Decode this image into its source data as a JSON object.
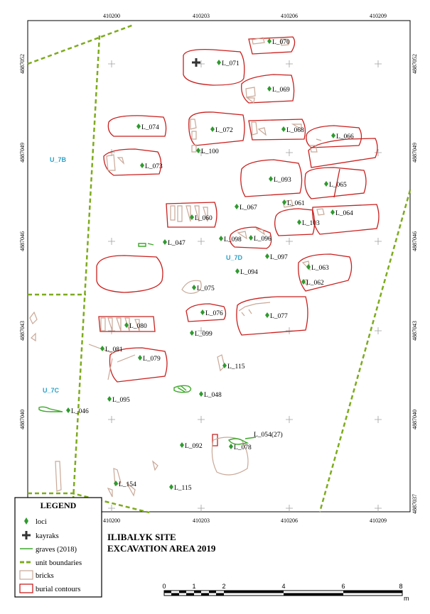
{
  "map": {
    "x_ticks": [
      "410200",
      "410203",
      "410206",
      "410209"
    ],
    "y_ticks": [
      "4887052",
      "4887049",
      "4887046",
      "4887043",
      "4887040",
      "4887037"
    ],
    "units": [
      "U_7B",
      "U_7C",
      "U_7D"
    ],
    "loci": [
      "L_070",
      "L_071",
      "L_069",
      "L_074",
      "L_072",
      "L_068",
      "L_066",
      "L_100",
      "L_073",
      "L_093",
      "L_065",
      "L_067",
      "L_061",
      "L_060",
      "L_064",
      "L_103",
      "L_098",
      "L_096",
      "L_047",
      "L_097",
      "L_063",
      "L_094",
      "L_062",
      "L_075",
      "L_076",
      "L_077",
      "L_080",
      "L_099",
      "L_081",
      "L_079",
      "L_115",
      "L_048",
      "L_095",
      "L_046",
      "L_054(27)",
      "L_092",
      "L_078",
      "L_154",
      "L_115"
    ]
  },
  "legend": {
    "title": "LEGEND",
    "items": [
      "loci",
      "kayraks",
      "graves (2018)",
      "unit boundaries",
      "bricks",
      "burial contours"
    ]
  },
  "site_title": {
    "line1": "ILIBALYK SITE",
    "line2": "EXCAVATION AREA 2019"
  },
  "scale_bar": {
    "labels": [
      "0",
      "1",
      "2",
      "4",
      "6",
      "8"
    ],
    "unit": "m"
  },
  "colors": {
    "burial_contour": "#c8201e",
    "brick": "#c9a898",
    "unit_boundary": "#7dab1d",
    "grave": "#3ea82b",
    "locus_marker": "#2e9a2e",
    "unit_label": "#2aa1c8"
  }
}
